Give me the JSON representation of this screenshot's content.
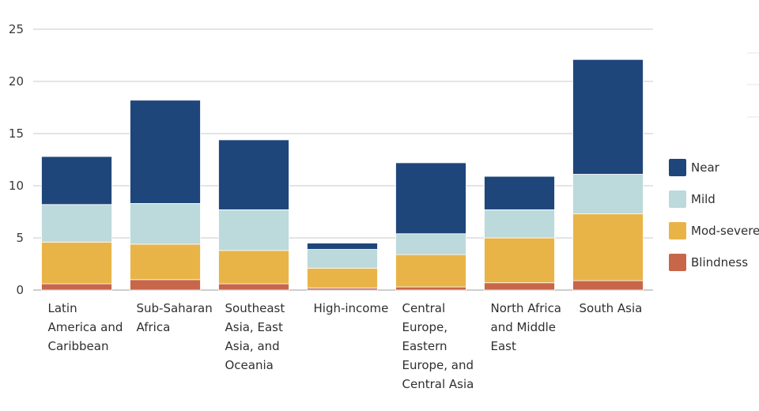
{
  "chart_data": {
    "type": "bar",
    "stacked": true,
    "categories": [
      "Latin America and Caribbean",
      "Sub-Saharan Africa",
      "Southeast Asia, East Asia, and Oceania",
      "High-income",
      "Central Europe, Eastern Europe, and Central Asia",
      "North Africa and Middle East",
      "South Asia"
    ],
    "category_lines": [
      [
        "Latin",
        "America and",
        "Caribbean"
      ],
      [
        "Sub-Saharan",
        "Africa"
      ],
      [
        "Southeast",
        "Asia, East",
        "Asia, and",
        "Oceania"
      ],
      [
        "High-income"
      ],
      [
        "Central",
        "Europe,",
        "Eastern",
        "Europe, and",
        "Central Asia"
      ],
      [
        "North Africa",
        "and Middle",
        "East"
      ],
      [
        "South Asia"
      ]
    ],
    "series": [
      {
        "name": "Blindness",
        "color": "#c8664a",
        "values": [
          0.6,
          1.0,
          0.6,
          0.2,
          0.3,
          0.7,
          0.9
        ]
      },
      {
        "name": "Mod-severe",
        "color": "#e9b447",
        "values": [
          4.0,
          3.4,
          3.2,
          1.9,
          3.1,
          4.3,
          6.4
        ]
      },
      {
        "name": "Mild",
        "color": "#bcd9dc",
        "values": [
          3.6,
          3.9,
          3.9,
          1.8,
          2.0,
          2.7,
          3.8
        ]
      },
      {
        "name": "Near",
        "color": "#1f467a",
        "values": [
          4.6,
          9.9,
          6.7,
          0.6,
          6.8,
          3.2,
          11.0
        ]
      }
    ],
    "legend_order": [
      "Near",
      "Mild",
      "Mod-severe",
      "Blindness"
    ],
    "legend_position": "right",
    "ylim": [
      0,
      25
    ],
    "yticks": [
      0,
      5,
      10,
      15,
      20,
      25
    ],
    "grid": true,
    "title": "",
    "xlabel": "",
    "ylabel": ""
  }
}
